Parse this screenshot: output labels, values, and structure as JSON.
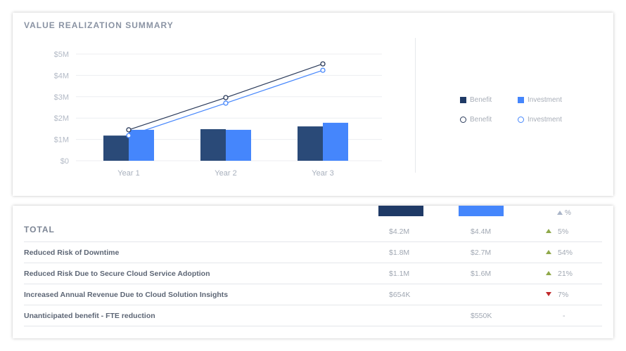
{
  "colors": {
    "benefit": "#2a4a78",
    "investment": "#4586fc",
    "up": "#8fa84a",
    "down": "#c0282a",
    "header_up": "#a9b4c8"
  },
  "card1": {
    "title": "VALUE REALIZATION SUMMARY"
  },
  "chart_data": {
    "type": "bar+line",
    "title": "VALUE REALIZATION SUMMARY",
    "categories": [
      "Year 1",
      "Year 2",
      "Year 3"
    ],
    "y_ticks": [
      "$0",
      "$1M",
      "$2M",
      "$3M",
      "$4M",
      "$5M"
    ],
    "ylim": [
      0,
      5
    ],
    "y_unit": "$M",
    "grid": true,
    "legend_position": "right",
    "bar_series": [
      {
        "name": "Benefit",
        "color": "#2a4a78",
        "values": [
          1.18,
          1.48,
          1.61
        ]
      },
      {
        "name": "Investment",
        "color": "#4586fc",
        "values": [
          1.45,
          1.45,
          1.78
        ]
      }
    ],
    "line_series": [
      {
        "name": "Benefit",
        "color": "#2a3a5a",
        "values": [
          1.45,
          2.96,
          4.54
        ]
      },
      {
        "name": "Investment",
        "color": "#4586fc",
        "values": [
          1.18,
          2.7,
          4.24
        ]
      }
    ]
  },
  "legend": {
    "bar_benefit": "Benefit",
    "bar_investment": "Investment",
    "line_benefit": "Benefit",
    "line_investment": "Investment"
  },
  "table": {
    "header_pct": "%",
    "rows": [
      {
        "label": "TOTAL",
        "benefit": "$4.2M",
        "investment": "$4.4M",
        "change": "5%",
        "trend": "up"
      },
      {
        "label": "Reduced Risk of Downtime",
        "benefit": "$1.8M",
        "investment": "$2.7M",
        "change": "54%",
        "trend": "up"
      },
      {
        "label": "Reduced Risk Due to Secure Cloud Service Adoption",
        "benefit": "$1.1M",
        "investment": "$1.6M",
        "change": "21%",
        "trend": "up"
      },
      {
        "label": "Increased Annual Revenue Due to Cloud Solution Insights",
        "benefit": "$654K",
        "investment": "",
        "change": "7%",
        "trend": "down"
      },
      {
        "label": "Unanticipated benefit - FTE reduction",
        "benefit": "",
        "investment": "$550K",
        "change": "-",
        "trend": "none"
      }
    ]
  }
}
